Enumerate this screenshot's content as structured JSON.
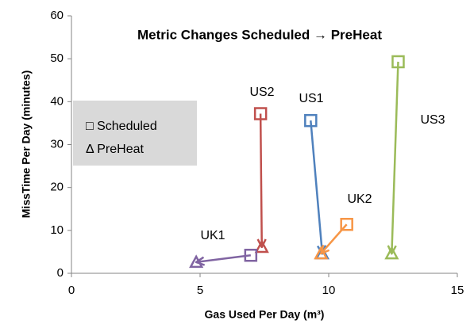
{
  "chart_data": {
    "type": "scatter",
    "title": "Metric Changes Scheduled → PreHeat",
    "x_label": "Gas Used Per Day (m³)",
    "y_label": "MissTime Per Day (minutes)",
    "legend": [
      "□ Scheduled",
      "Δ PreHeat"
    ],
    "xlim": [
      0,
      15
    ],
    "xticks": [
      0,
      5,
      10,
      15
    ],
    "ylim": [
      0,
      60
    ],
    "yticks": [
      0,
      10,
      20,
      30,
      40,
      50,
      60
    ],
    "series": [
      {
        "name": "US2",
        "color": "#c0504d",
        "x": [
          7.35,
          7.4
        ],
        "values": [
          37.2,
          6.1
        ]
      },
      {
        "name": "US1",
        "color": "#4f81bd",
        "x": [
          9.3,
          9.75
        ],
        "values": [
          35.6,
          4.6
        ]
      },
      {
        "name": "US3",
        "color": "#9bbb59",
        "x": [
          12.7,
          12.45
        ],
        "values": [
          49.3,
          4.6
        ]
      },
      {
        "name": "UK2",
        "color": "#f79646",
        "x": [
          10.7,
          9.7
        ],
        "values": [
          11.4,
          4.6
        ]
      },
      {
        "name": "UK1",
        "color": "#8064a2",
        "x": [
          6.97,
          4.85
        ],
        "values": [
          4.2,
          2.6
        ]
      }
    ]
  }
}
